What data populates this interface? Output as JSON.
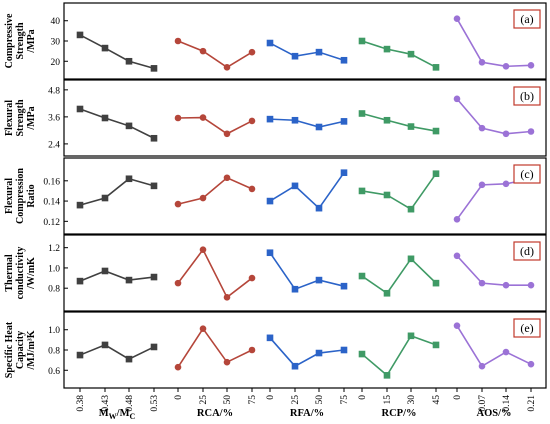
{
  "colors": {
    "group1": "#404040",
    "group2": "#b5463a",
    "group3": "#2b63c8",
    "group4": "#3f9a65",
    "group5": "#9b72d6",
    "tag_border": "#c0392b"
  },
  "x_groups": [
    {
      "sub": "",
      "label_main": "M",
      "label_sub1": "W",
      "label_mid": "/M",
      "label_sub2": "C",
      "ticks": [
        "0.38",
        "0.43",
        "0.48",
        "0.53"
      ]
    },
    {
      "label": "RCA/%",
      "ticks": [
        "0",
        "25",
        "50",
        "75"
      ]
    },
    {
      "label": "RFA/%",
      "ticks": [
        "0",
        "25",
        "50",
        "75"
      ]
    },
    {
      "label": "RCP/%",
      "ticks": [
        "0",
        "15",
        "30",
        "45"
      ]
    },
    {
      "label": "AOS/%",
      "ticks": [
        "0",
        "0.07",
        "0.14",
        "0.21"
      ]
    }
  ],
  "chart_data": [
    {
      "type": "line",
      "panel_tag": "(a)",
      "ylabel_lines": [
        "Compressive",
        "Strength",
        "/MPa"
      ],
      "ylim": [
        15,
        45
      ],
      "yticks": [
        "20",
        "30",
        "40"
      ],
      "yticks_values": [
        20,
        30,
        40
      ],
      "series": [
        {
          "values": [
            33,
            26.5,
            20,
            16.5
          ]
        },
        {
          "values": [
            30,
            25,
            17,
            24.5
          ]
        },
        {
          "values": [
            29,
            22.5,
            24.5,
            20.5
          ]
        },
        {
          "values": [
            30,
            26,
            23.5,
            17
          ]
        },
        {
          "values": [
            41,
            19.5,
            17.5,
            18
          ]
        }
      ]
    },
    {
      "type": "line",
      "panel_tag": "(b)",
      "ylabel_lines": [
        "Flexural",
        "Strength",
        "/MPa"
      ],
      "ylim": [
        2.2,
        4.9
      ],
      "yticks": [
        "2.4",
        "3.6",
        "4.8"
      ],
      "yticks_values": [
        2.4,
        3.6,
        4.8
      ],
      "series": [
        {
          "values": [
            3.95,
            3.55,
            3.2,
            2.65
          ]
        },
        {
          "values": [
            3.55,
            3.57,
            2.85,
            3.42
          ]
        },
        {
          "values": [
            3.5,
            3.45,
            3.15,
            3.4
          ]
        },
        {
          "values": [
            3.75,
            3.45,
            3.17,
            2.97
          ]
        },
        {
          "values": [
            4.4,
            3.1,
            2.85,
            2.95
          ]
        }
      ]
    },
    {
      "type": "line",
      "panel_tag": "(c)",
      "ylabel_lines": [
        "Flexural",
        "Compression",
        "Ratio"
      ],
      "ylim": [
        0.115,
        0.175
      ],
      "yticks": [
        "0.12",
        "0.14",
        "0.16"
      ],
      "yticks_values": [
        0.12,
        0.14,
        0.16
      ],
      "series": [
        {
          "values": [
            0.136,
            0.143,
            0.162,
            0.155
          ]
        },
        {
          "values": [
            0.137,
            0.143,
            0.163,
            0.152
          ]
        },
        {
          "values": [
            0.14,
            0.155,
            0.133,
            0.168
          ]
        },
        {
          "values": [
            0.15,
            0.146,
            0.132,
            0.167
          ]
        },
        {
          "values": [
            0.122,
            0.156,
            0.157,
            0.162
          ]
        }
      ]
    },
    {
      "type": "line",
      "panel_tag": "(d)",
      "ylabel_lines": [
        "Thermal",
        "conductivity",
        "/W/mK"
      ],
      "ylim": [
        0.65,
        1.25
      ],
      "yticks": [
        "0.8",
        "1.0",
        "1.2"
      ],
      "yticks_values": [
        0.8,
        1.0,
        1.2
      ],
      "series": [
        {
          "values": [
            0.87,
            0.97,
            0.88,
            0.91
          ]
        },
        {
          "values": [
            0.85,
            1.18,
            0.71,
            0.9
          ]
        },
        {
          "values": [
            1.15,
            0.79,
            0.88,
            0.82
          ]
        },
        {
          "values": [
            0.92,
            0.75,
            1.09,
            0.85
          ]
        },
        {
          "values": [
            1.12,
            0.85,
            0.83,
            0.83
          ]
        }
      ]
    },
    {
      "type": "line",
      "panel_tag": "(e)",
      "ylabel_lines": [
        "Specific Heat",
        "Capacity",
        "/MJ/m³K"
      ],
      "ylim": [
        0.5,
        1.1
      ],
      "yticks": [
        "0.6",
        "0.8",
        "1.0"
      ],
      "yticks_values": [
        0.6,
        0.8,
        1.0
      ],
      "series": [
        {
          "values": [
            0.75,
            0.85,
            0.71,
            0.83
          ]
        },
        {
          "values": [
            0.63,
            1.01,
            0.68,
            0.8
          ]
        },
        {
          "values": [
            0.92,
            0.64,
            0.77,
            0.8
          ]
        },
        {
          "values": [
            0.76,
            0.55,
            0.94,
            0.85
          ]
        },
        {
          "values": [
            1.04,
            0.64,
            0.78,
            0.66
          ]
        }
      ]
    }
  ]
}
